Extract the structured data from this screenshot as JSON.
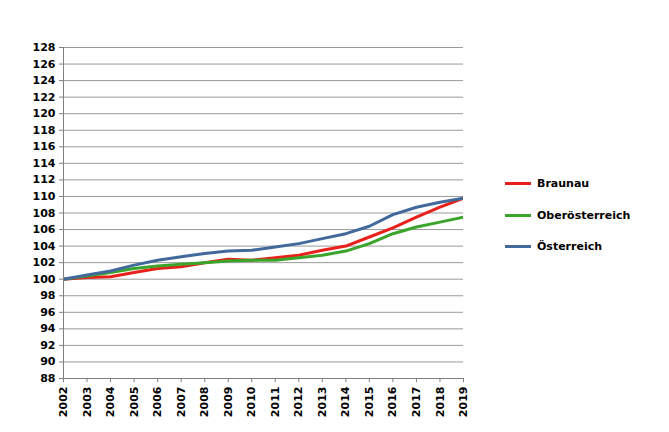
{
  "chart_data": {
    "type": "line",
    "x": [
      2002,
      2003,
      2004,
      2005,
      2006,
      2007,
      2008,
      2009,
      2010,
      2011,
      2012,
      2013,
      2014,
      2015,
      2016,
      2017,
      2018,
      2019
    ],
    "series": [
      {
        "name": "Braunau",
        "color": "#e8201a",
        "values": [
          100,
          100.2,
          100.3,
          100.8,
          101.3,
          101.5,
          102.0,
          102.4,
          102.3,
          102.6,
          102.9,
          103.5,
          104.0,
          105.1,
          106.2,
          107.5,
          108.7,
          109.8
        ]
      },
      {
        "name": "Oberösterreich",
        "color": "#3aa52a",
        "values": [
          100,
          100.4,
          100.8,
          101.3,
          101.6,
          101.8,
          102.0,
          102.2,
          102.3,
          102.3,
          102.6,
          102.9,
          103.4,
          104.3,
          105.5,
          106.3,
          106.9,
          107.5
        ]
      },
      {
        "name": "Österreich",
        "color": "#41699c",
        "values": [
          100,
          100.5,
          101.0,
          101.7,
          102.3,
          102.7,
          103.1,
          103.4,
          103.5,
          103.9,
          104.3,
          104.9,
          105.5,
          106.4,
          107.8,
          108.7,
          109.3,
          109.8
        ]
      }
    ],
    "xlim": [
      2002,
      2019
    ],
    "xticks": [
      2002,
      2003,
      2004,
      2005,
      2006,
      2007,
      2008,
      2009,
      2010,
      2011,
      2012,
      2013,
      2014,
      2015,
      2016,
      2017,
      2018,
      2019
    ],
    "ylim": [
      88,
      128
    ],
    "yticks": [
      88,
      90,
      92,
      94,
      96,
      98,
      100,
      102,
      104,
      106,
      108,
      110,
      112,
      114,
      116,
      118,
      120,
      122,
      124,
      126,
      128
    ],
    "grid": "y",
    "legend": "right"
  }
}
